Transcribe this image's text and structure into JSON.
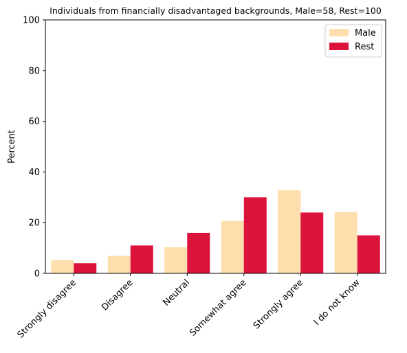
{
  "chart_data": {
    "type": "bar",
    "title": "Individuals from financially disadvantaged backgrounds, Male=58, Rest=100",
    "xlabel": "",
    "ylabel": "Percent",
    "ylim": [
      0,
      100
    ],
    "yticks": [
      0,
      20,
      40,
      60,
      80,
      100
    ],
    "categories": [
      "Strongly disagree",
      "Disagree",
      "Neutral",
      "Somewhat agree",
      "Strongly agree",
      "I do not know"
    ],
    "series": [
      {
        "name": "Male",
        "color": "#FFDEAD",
        "values": [
          5.2,
          6.9,
          10.3,
          20.7,
          32.8,
          24.1
        ]
      },
      {
        "name": "Rest",
        "color": "#DC143C",
        "values": [
          4,
          11,
          16,
          30,
          24,
          15
        ]
      }
    ],
    "legend": "top-right",
    "grid": false
  }
}
